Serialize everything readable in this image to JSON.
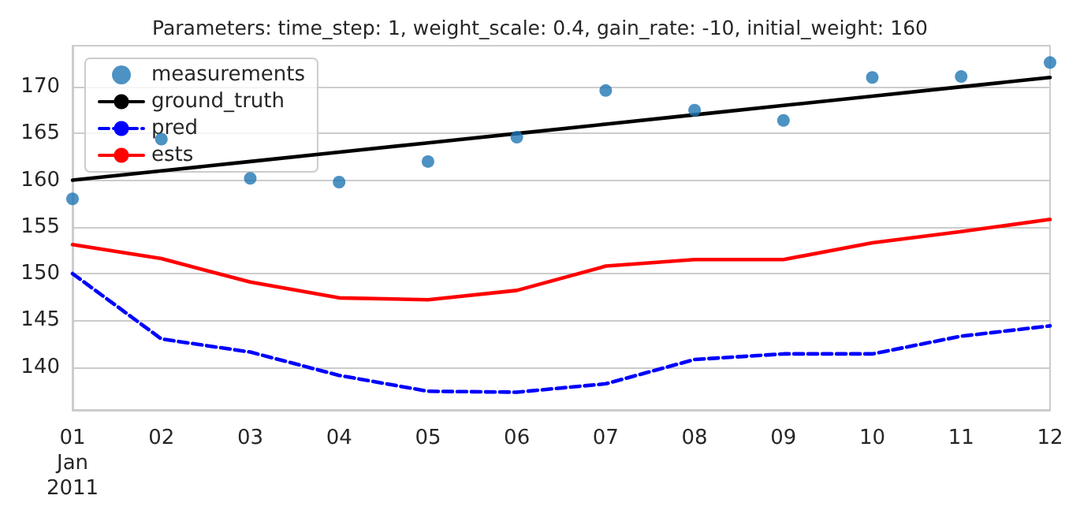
{
  "chart_data": {
    "type": "line",
    "title": "Parameters: time_step: 1, weight_scale: 0.4, gain_rate: -10, initial_weight: 160",
    "x": [
      "2011-01-01",
      "2011-01-02",
      "2011-01-03",
      "2011-01-04",
      "2011-01-05",
      "2011-01-06",
      "2011-01-07",
      "2011-01-08",
      "2011-01-09",
      "2011-01-10",
      "2011-01-11",
      "2011-01-12"
    ],
    "series": [
      {
        "name": "measurements",
        "type": "scatter",
        "marker": "circle",
        "color": "#1f77b4",
        "values": [
          158.0,
          164.4,
          160.2,
          159.8,
          162.0,
          164.6,
          169.6,
          167.5,
          166.4,
          171.0,
          171.1,
          172.6
        ]
      },
      {
        "name": "ground_truth",
        "line_style": "solid",
        "color": "#000000",
        "values": [
          160,
          161,
          162,
          163,
          164,
          165,
          166,
          167,
          168,
          169,
          170,
          171
        ]
      },
      {
        "name": "pred",
        "line_style": "dashed",
        "color": "#0000ff",
        "values": [
          150.0,
          143.0,
          141.6,
          139.1,
          137.4,
          137.3,
          138.2,
          140.8,
          141.4,
          141.4,
          143.3,
          144.4
        ]
      },
      {
        "name": "ests",
        "line_style": "solid",
        "color": "#ff0000",
        "values": [
          153.1,
          151.6,
          149.1,
          147.4,
          147.2,
          148.2,
          150.8,
          151.5,
          151.5,
          153.3,
          154.5,
          155.8
        ]
      }
    ],
    "xlim": [
      "2011-01-01",
      "2011-01-12"
    ],
    "xticks": [
      {
        "value": "2011-01-01",
        "label": "01\nJan\n2011"
      },
      {
        "value": "2011-01-02",
        "label": "02"
      },
      {
        "value": "2011-01-03",
        "label": "03"
      },
      {
        "value": "2011-01-04",
        "label": "04"
      },
      {
        "value": "2011-01-05",
        "label": "05"
      },
      {
        "value": "2011-01-06",
        "label": "06"
      },
      {
        "value": "2011-01-07",
        "label": "07"
      },
      {
        "value": "2011-01-08",
        "label": "08"
      },
      {
        "value": "2011-01-09",
        "label": "09"
      },
      {
        "value": "2011-01-10",
        "label": "10"
      },
      {
        "value": "2011-01-11",
        "label": "11"
      },
      {
        "value": "2011-01-12",
        "label": "12"
      }
    ],
    "ylim": [
      135.4,
      174.4
    ],
    "yticks": [
      140,
      145,
      150,
      155,
      160,
      165,
      170
    ],
    "grid": "y",
    "legend": "top left"
  }
}
